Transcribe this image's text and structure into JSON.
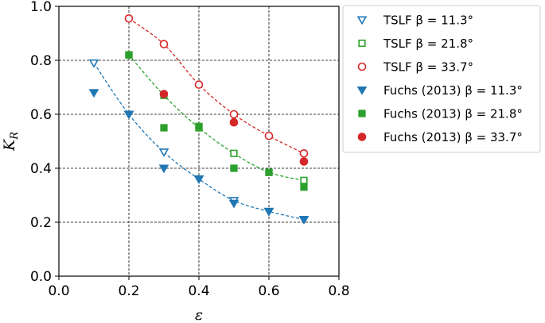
{
  "chart_data": {
    "type": "scatter",
    "xlabel": "ε",
    "ylabel": "K",
    "ylabel_sub": "R",
    "xlim": [
      0.0,
      0.8
    ],
    "ylim": [
      0.0,
      1.0
    ],
    "xticks": [
      "0.0",
      "0.2",
      "0.4",
      "0.6",
      "0.8"
    ],
    "yticks": [
      "0.0",
      "0.2",
      "0.4",
      "0.6",
      "0.8",
      "1.0"
    ],
    "xtick_values": [
      0.0,
      0.2,
      0.4,
      0.6,
      0.8
    ],
    "ytick_values": [
      0.0,
      0.2,
      0.4,
      0.6,
      0.8,
      1.0
    ],
    "grid": true,
    "legend_position": "right",
    "series": [
      {
        "name": "TSLF β = 11.3°",
        "color": "#1f77b4",
        "marker": "triangle-down",
        "filled": false,
        "fit_line": true,
        "x": [
          0.1,
          0.2,
          0.3,
          0.4,
          0.5,
          0.6,
          0.7
        ],
        "y": [
          0.79,
          0.6,
          0.46,
          0.36,
          0.28,
          0.24,
          0.21
        ]
      },
      {
        "name": "TSLF β = 21.8°",
        "color": "#2ca02c",
        "marker": "square",
        "filled": false,
        "fit_line": true,
        "x": [
          0.2,
          0.3,
          0.4,
          0.5,
          0.6,
          0.7
        ],
        "y": [
          0.82,
          0.67,
          0.55,
          0.455,
          0.385,
          0.355
        ]
      },
      {
        "name": "TSLF β = 33.7°",
        "color": "#d62728",
        "marker": "circle",
        "filled": false,
        "fit_line": true,
        "x": [
          0.2,
          0.3,
          0.4,
          0.5,
          0.6,
          0.7
        ],
        "y": [
          0.955,
          0.86,
          0.71,
          0.6,
          0.52,
          0.455
        ]
      },
      {
        "name": "Fuchs (2013) β = 11.3°",
        "color": "#1f77b4",
        "marker": "triangle-down",
        "filled": true,
        "fit_line": false,
        "x": [
          0.1,
          0.2,
          0.3,
          0.4,
          0.5,
          0.6,
          0.7
        ],
        "y": [
          0.68,
          0.6,
          0.4,
          0.36,
          0.27,
          0.24,
          0.21
        ]
      },
      {
        "name": "Fuchs (2013) β = 21.8°",
        "color": "#2ca02c",
        "marker": "square",
        "filled": true,
        "fit_line": false,
        "x": [
          0.2,
          0.3,
          0.4,
          0.5,
          0.6,
          0.7
        ],
        "y": [
          0.82,
          0.55,
          0.555,
          0.4,
          0.385,
          0.33
        ]
      },
      {
        "name": "Fuchs (2013) β = 33.7°",
        "color": "#d62728",
        "marker": "circle",
        "filled": true,
        "fit_line": false,
        "x": [
          0.3,
          0.5,
          0.7
        ],
        "y": [
          0.675,
          0.57,
          0.425
        ]
      }
    ]
  }
}
